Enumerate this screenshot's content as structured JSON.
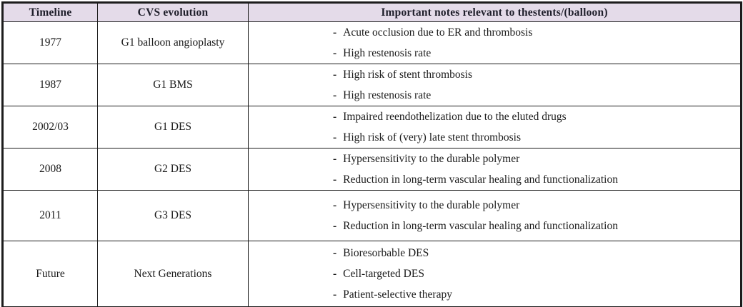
{
  "table": {
    "bullet": "-",
    "colors": {
      "header_bg": "#e4dbe9",
      "border": "#1c1c1c",
      "text": "#1a1a1a"
    },
    "columns": [
      {
        "label": "Timeline"
      },
      {
        "label": "CVS evolution"
      },
      {
        "label": "Important notes relevant to thestents/(balloon)"
      }
    ],
    "rows": [
      {
        "timeline": "1977",
        "evolution": "G1 balloon angioplasty",
        "notes": [
          "Acute occlusion due to ER and thrombosis",
          "High restenosis rate"
        ]
      },
      {
        "timeline": "1987",
        "evolution": "G1 BMS",
        "notes": [
          "High risk of stent thrombosis",
          "High restenosis rate"
        ]
      },
      {
        "timeline": "2002/03",
        "evolution": "G1 DES",
        "notes": [
          "Impaired reendothelization due to the eluted drugs",
          "High risk of (very) late stent thrombosis"
        ]
      },
      {
        "timeline": "2008",
        "evolution": "G2 DES",
        "notes": [
          "Hypersensitivity to the durable polymer",
          "Reduction in long-term vascular healing and functionalization"
        ]
      },
      {
        "timeline": "2011",
        "evolution": "G3 DES",
        "notes": [
          "Hypersensitivity to the durable polymer",
          "Reduction in long-term vascular healing and functionalization"
        ]
      },
      {
        "timeline": "Future",
        "evolution": "Next Generations",
        "notes": [
          "Bioresorbable DES",
          "Cell-targeted DES",
          "Patient-selective therapy"
        ]
      }
    ]
  }
}
